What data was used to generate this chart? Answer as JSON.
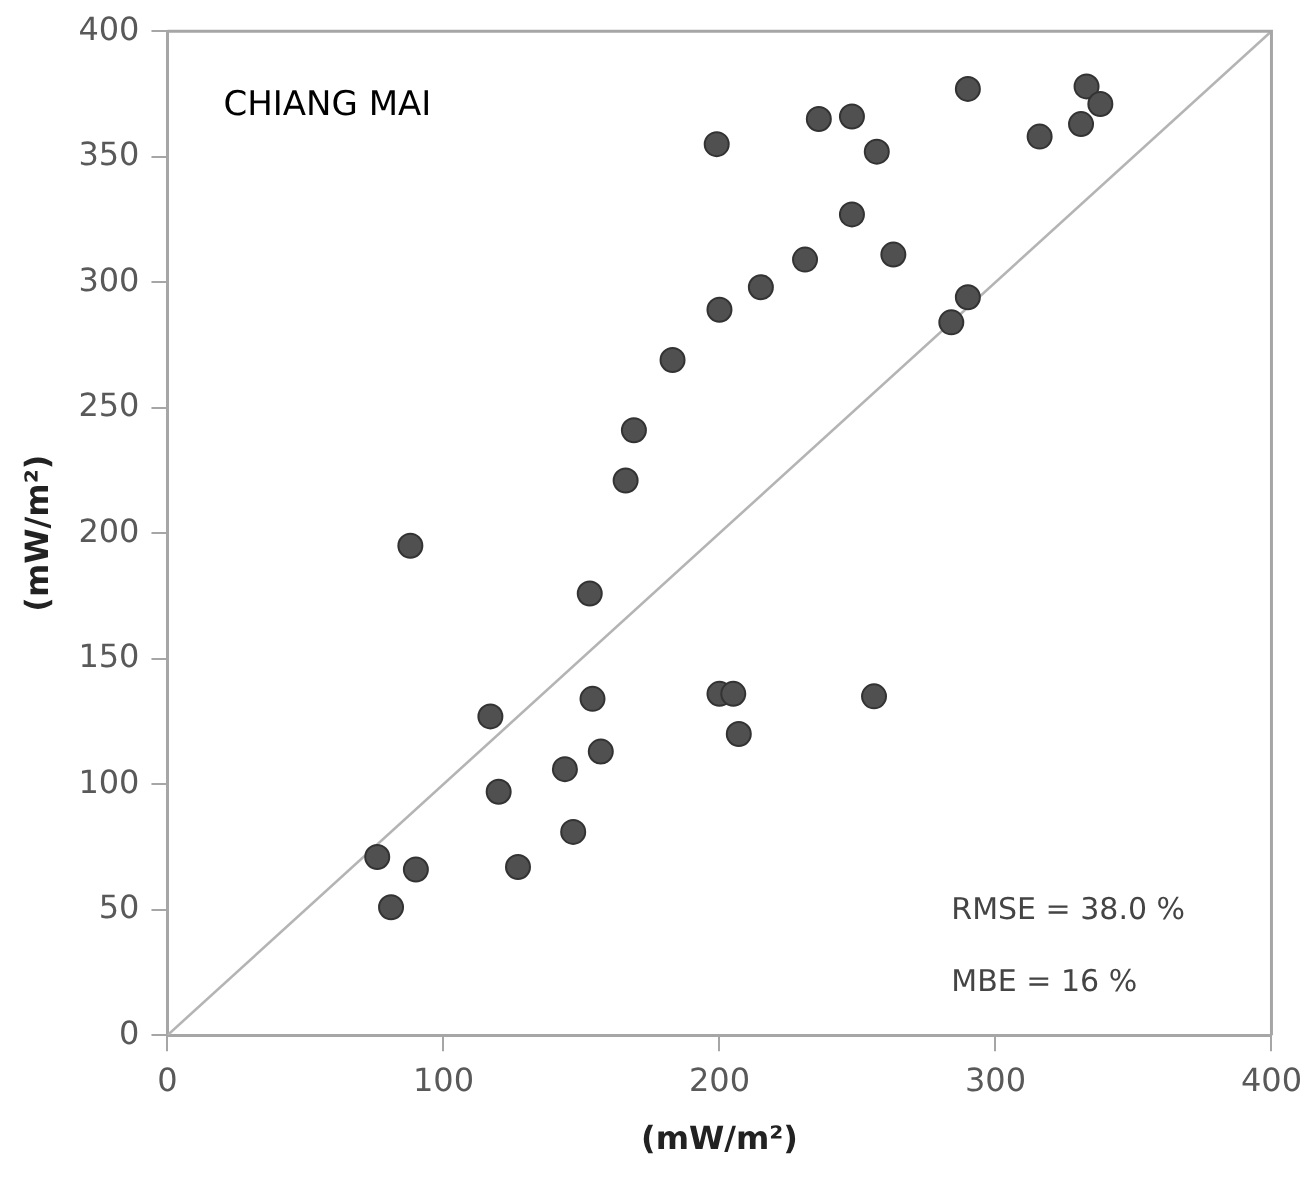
{
  "chart_data": {
    "type": "scatter",
    "xlabel": "(mW/m²)",
    "ylabel": "(mW/m²)",
    "xlim": [
      0,
      400
    ],
    "xticks": [
      0,
      100,
      200,
      300,
      400
    ],
    "ylim": [
      0,
      400
    ],
    "yticks": [
      0,
      50,
      100,
      150,
      200,
      250,
      300,
      350,
      400
    ],
    "grid": false,
    "legend": false,
    "marker": "circle",
    "annotations": [
      "CHIANG MAI",
      "RMSE = 38.0 %",
      "MBE = 16 %"
    ],
    "series": [
      {
        "color": "#505050",
        "x": [
          76,
          81,
          90,
          88,
          117,
          120,
          127,
          144,
          147,
          153,
          154,
          157,
          166,
          169,
          183,
          199,
          200,
          200,
          205,
          207,
          215,
          231,
          236,
          248,
          248,
          257,
          263,
          256,
          284,
          290,
          290,
          316,
          331,
          333,
          338
        ],
        "values": [
          71,
          51,
          66,
          195,
          127,
          97,
          67,
          106,
          81,
          176,
          134,
          113,
          221,
          241,
          269,
          355,
          289,
          136,
          136,
          120,
          298,
          309,
          365,
          366,
          327,
          352,
          311,
          135,
          284,
          294,
          377,
          358,
          363,
          378,
          371
        ]
      },
      {
        "type": "line",
        "color": "#b4b4b4",
        "x": [
          0,
          400
        ],
        "values": [
          0,
          400
        ],
        "marker": "none"
      }
    ]
  }
}
